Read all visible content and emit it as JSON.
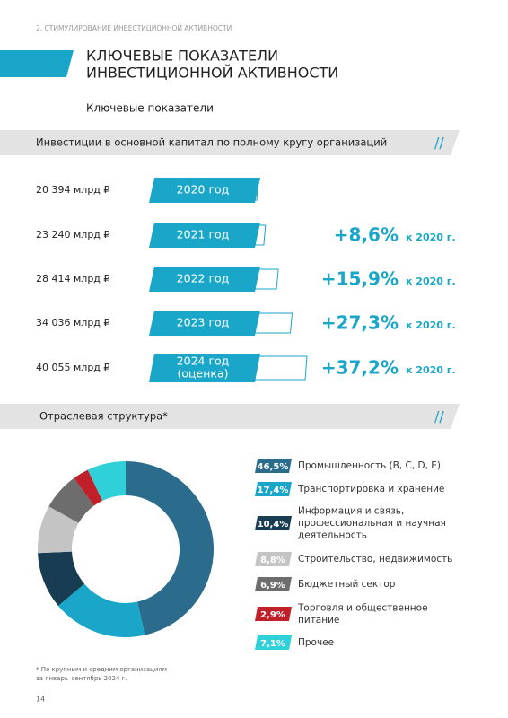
{
  "header": {
    "section": "2. СТИМУЛИРОВАНИЕ ИНВЕСТИЦИОННОЙ АКТИВНОСТИ",
    "title_lines": [
      "КЛЮЧЕВЫЕ ПОКАЗАТЕЛИ",
      "ИНВЕСТИЦИОННОЙ АКТИВНОСТИ"
    ],
    "subtitle": "Ключевые показатели"
  },
  "investment": {
    "title": "Инвестиции в основной капитал по полному кругу организаций",
    "rows": [
      {
        "value": 20394,
        "value_label": "20 394 млрд ₽",
        "year_lines": [
          "2020 год"
        ]
      },
      {
        "value": 23240,
        "value_label": "23 240 млрд ₽",
        "year_lines": [
          "2021 год"
        ],
        "growth": 8.6,
        "growth_label": "+8,6%",
        "growth_note": "к 2020 г."
      },
      {
        "value": 28414,
        "value_label": "28 414 млрд ₽",
        "year_lines": [
          "2022 год"
        ],
        "growth": 15.9,
        "growth_label": "+15,9%",
        "growth_note": "к 2020 г."
      },
      {
        "value": 34036,
        "value_label": "34 036 млрд ₽",
        "year_lines": [
          "2023 год"
        ],
        "growth": 27.3,
        "growth_label": "+27,3%",
        "growth_note": "к 2020 г."
      },
      {
        "value": 40055,
        "value_label": "40 055 млрд ₽",
        "year_lines": [
          "2024 год",
          "(оценка)"
        ],
        "growth": 37.2,
        "growth_label": "+37,2%",
        "growth_note": "к 2020 г."
      }
    ]
  },
  "structure": {
    "title": "Отраслевая структура*",
    "segments": [
      {
        "value": 46.5,
        "value_label": "46,5%",
        "name_lines": [
          "Промышленность (B, C, D, E)"
        ],
        "color": "#2b6b8c"
      },
      {
        "value": 17.4,
        "value_label": "17,4%",
        "name_lines": [
          "Транспортировка и хранение"
        ],
        "color": "#1aa6c8"
      },
      {
        "value": 10.4,
        "value_label": "10,4%",
        "name_lines": [
          "Информация и связь,",
          "профессиональная и научная",
          "деятельность"
        ],
        "color": "#183c52"
      },
      {
        "value": 8.8,
        "value_label": "8,8%",
        "name_lines": [
          "Строительство, недвижимость"
        ],
        "color": "#c4c4c4"
      },
      {
        "value": 6.9,
        "value_label": "6,9%",
        "name_lines": [
          "Бюджетный сектор"
        ],
        "color": "#6d6d6d"
      },
      {
        "value": 2.9,
        "value_label": "2,9%",
        "name_lines": [
          "Торговля и общественное",
          "питание"
        ],
        "color": "#c0202a"
      },
      {
        "value": 7.1,
        "value_label": "7,1%",
        "name_lines": [
          "Прочее"
        ],
        "color": "#2fd0d8"
      }
    ],
    "footnote_lines": [
      "* По крупным и средним организациям",
      "за январь–сентябрь 2024 г."
    ]
  },
  "page_number": "14"
}
